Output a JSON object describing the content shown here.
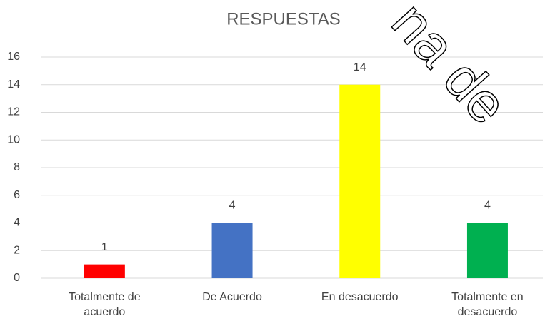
{
  "chart_data": {
    "type": "bar",
    "title": "RESPUESTAS",
    "categories": [
      "Totalmente de acuerdo",
      "De Acuerdo",
      "En desacuerdo",
      "Totalmente en desacuerdo"
    ],
    "values": [
      1,
      4,
      14,
      4
    ],
    "colors": [
      "#ff0000",
      "#4472c4",
      "#ffff00",
      "#00b050"
    ],
    "ylim": [
      0,
      16
    ],
    "yticks": [
      0,
      2,
      4,
      6,
      8,
      10,
      12,
      14,
      16
    ],
    "grid": true,
    "watermark": "na de"
  }
}
